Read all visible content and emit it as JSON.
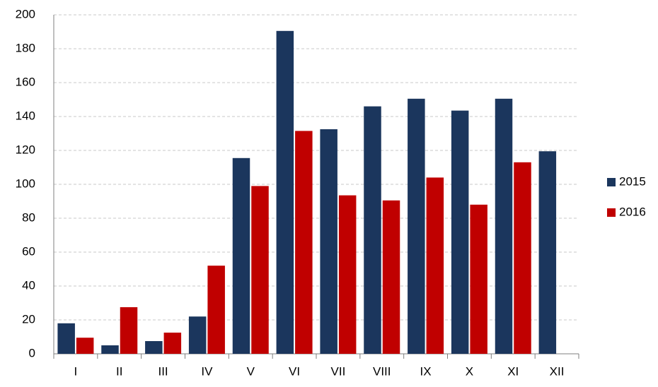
{
  "chart_data": {
    "type": "bar",
    "categories": [
      "I",
      "II",
      "III",
      "IV",
      "V",
      "VI",
      "VII",
      "VIII",
      "IX",
      "X",
      "XI",
      "XII"
    ],
    "series": [
      {
        "name": "2015",
        "color": "#1b365d",
        "values": [
          18,
          5,
          7.5,
          22,
          115.5,
          190.5,
          132.5,
          146,
          150.5,
          143.5,
          150.5,
          119.5
        ]
      },
      {
        "name": "2016",
        "color": "#c00000",
        "values": [
          9.5,
          27.5,
          12.5,
          52,
          99,
          131.5,
          93.5,
          90.5,
          104,
          88,
          113,
          null
        ]
      }
    ],
    "ylim": [
      0,
      200
    ],
    "yticks": [
      0,
      20,
      40,
      60,
      80,
      100,
      120,
      140,
      160,
      180,
      200
    ],
    "grid": true,
    "legend": "right"
  }
}
